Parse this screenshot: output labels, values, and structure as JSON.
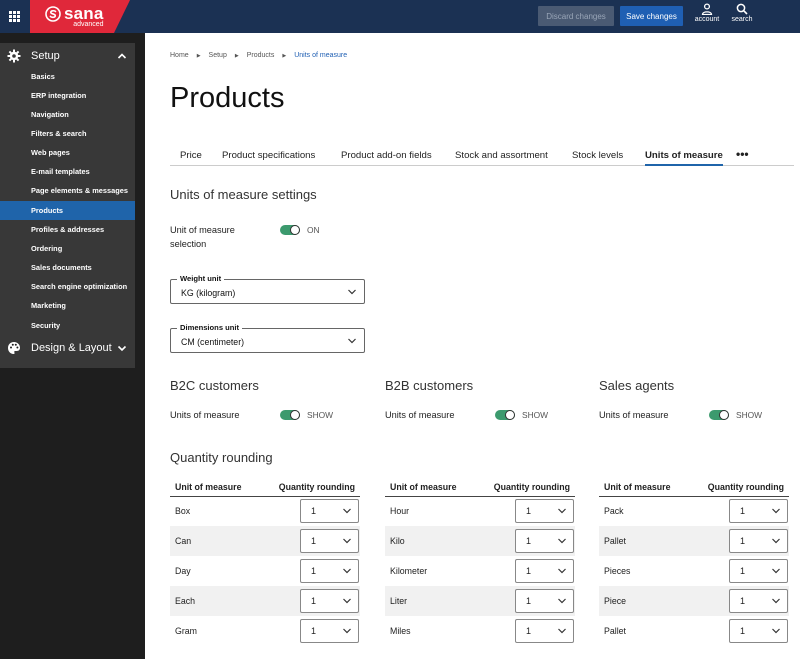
{
  "topbar": {
    "logo_name": "sana",
    "logo_sub": "advanced",
    "discard_label": "Discard changes",
    "save_label": "Save changes",
    "account_label": "account",
    "search_label": "search"
  },
  "sidebar": {
    "setup_label": "Setup",
    "items": [
      "Basics",
      "ERP integration",
      "Navigation",
      "Filters & search",
      "Web pages",
      "E-mail templates",
      "Page elements & messages",
      "Products",
      "Profiles & addresses",
      "Ordering",
      "Sales documents",
      "Search engine optimization",
      "Marketing",
      "Security"
    ],
    "active_item": "Products",
    "design_label": "Design & Layout"
  },
  "breadcrumb": [
    "Home",
    "Setup",
    "Products",
    "Units of measure"
  ],
  "page_title": "Products",
  "tabs": [
    "Price",
    "Product specifications",
    "Product add-on fields",
    "Stock and assortment",
    "Stock levels",
    "Units of measure"
  ],
  "active_tab": "Units of measure",
  "tab_more": "•••",
  "settings": {
    "title": "Units of measure settings",
    "uom_selection_label_1": "Unit of measure",
    "uom_selection_label_2": "selection",
    "uom_selection_state": "ON",
    "weight_unit_label": "Weight unit",
    "weight_unit_value": "KG (kilogram)",
    "dimensions_unit_label": "Dimensions unit",
    "dimensions_unit_value": "CM (centimeter)"
  },
  "groups": [
    {
      "title": "B2C customers",
      "label": "Units of measure",
      "state": "SHOW"
    },
    {
      "title": "B2B customers",
      "label": "Units of measure",
      "state": "SHOW"
    },
    {
      "title": "Sales agents",
      "label": "Units of measure",
      "state": "SHOW"
    }
  ],
  "rounding": {
    "title": "Quantity rounding",
    "col_unit": "Unit of measure",
    "col_rounding": "Quantity rounding",
    "tables": [
      [
        {
          "unit": "Box",
          "value": "1"
        },
        {
          "unit": "Can",
          "value": "1"
        },
        {
          "unit": "Day",
          "value": "1"
        },
        {
          "unit": "Each",
          "value": "1"
        },
        {
          "unit": "Gram",
          "value": "1"
        }
      ],
      [
        {
          "unit": "Hour",
          "value": "1"
        },
        {
          "unit": "Kilo",
          "value": "1"
        },
        {
          "unit": "Kilometer",
          "value": "1"
        },
        {
          "unit": "Liter",
          "value": "1"
        },
        {
          "unit": "Miles",
          "value": "1"
        }
      ],
      [
        {
          "unit": "Pack",
          "value": "1"
        },
        {
          "unit": "Pallet",
          "value": "1"
        },
        {
          "unit": "Pieces",
          "value": "1"
        },
        {
          "unit": "Piece",
          "value": "1"
        },
        {
          "unit": "Pallet",
          "value": "1"
        }
      ]
    ]
  },
  "colors": {
    "topbar": "#1b3153",
    "brand": "#e0283a",
    "accent": "#1f64aa",
    "toggle_on": "#3c9a6e"
  }
}
